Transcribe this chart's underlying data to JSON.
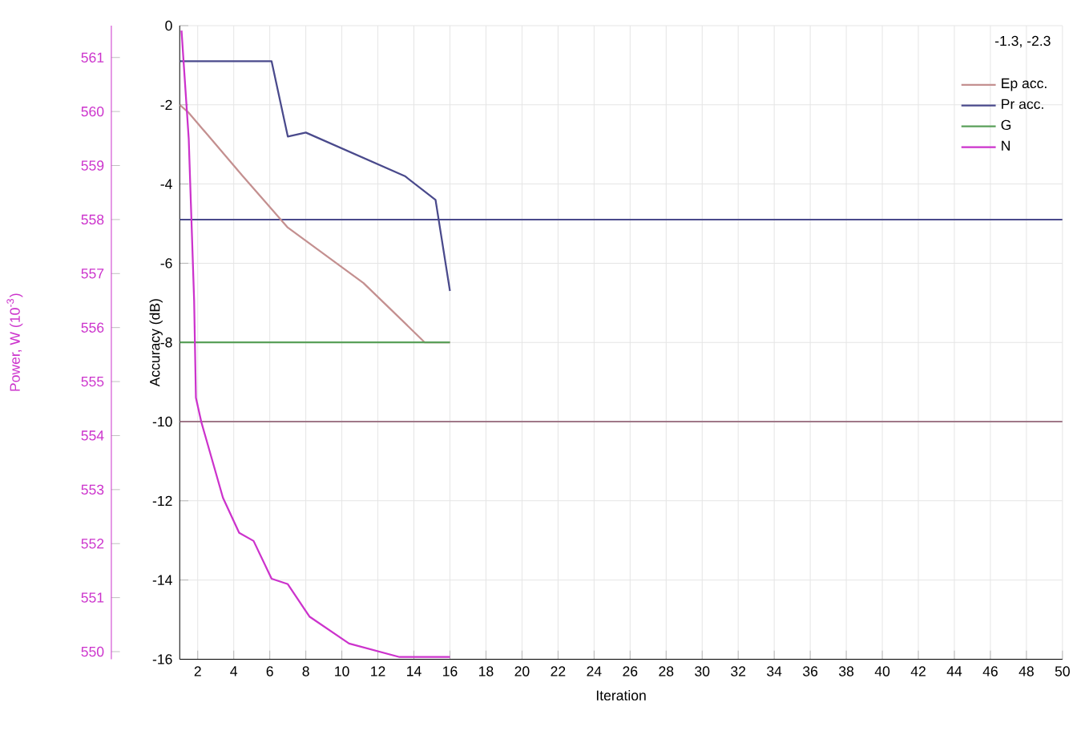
{
  "chart_data": {
    "type": "line",
    "xlabel": "Iteration",
    "ylabel": "Accuracy (dB)",
    "y2label": "Power, W (10$^{-3}$)",
    "xlim": [
      1,
      50
    ],
    "xticks": [
      2,
      4,
      6,
      8,
      10,
      12,
      14,
      16,
      18,
      20,
      22,
      24,
      26,
      28,
      30,
      32,
      34,
      36,
      38,
      40,
      42,
      44,
      46,
      48,
      50
    ],
    "ylim": [
      -16,
      0
    ],
    "yticks": [
      -16,
      -14,
      -12,
      -10,
      -8,
      -6,
      -4,
      -2,
      0
    ],
    "y2lim": [
      549.86,
      561.59
    ],
    "y2ticks": [
      550,
      551,
      552,
      553,
      554,
      555,
      556,
      557,
      558,
      559,
      560,
      561
    ],
    "grid": true,
    "legend": "top right",
    "marker": "none",
    "line_style": "solid",
    "annotations": [
      "-1.3, -2.3"
    ],
    "ref_lines": [
      {
        "axis": "y",
        "value": -4.9,
        "color": "#4a4a8c"
      },
      {
        "axis": "y",
        "value": -10,
        "color": "#a07888"
      }
    ],
    "series": [
      {
        "name": "Ep acc.",
        "color": "#c49090",
        "x": [
          1,
          1.5,
          4.5,
          7,
          11.2,
          13.7,
          14.6,
          16
        ],
        "values": [
          -2.0,
          -2.2,
          -3.8,
          -5.1,
          -6.5,
          -7.6,
          -8.0,
          -8.0
        ]
      },
      {
        "name": "Pr acc.",
        "color": "#4a4a8c",
        "x": [
          1,
          6.1,
          7,
          8,
          13.5,
          15.2,
          16
        ],
        "values": [
          -0.9,
          -0.9,
          -2.8,
          -2.7,
          -3.8,
          -4.4,
          -6.7
        ]
      },
      {
        "name": "G",
        "color": "#5aa05a",
        "x": [
          1,
          16
        ],
        "values": [
          -8,
          -8
        ]
      },
      {
        "name": "N",
        "color": "#cc33cc",
        "axis": "y2",
        "x": [
          1.1,
          1.5,
          1.8,
          1.9,
          2.2,
          3.4,
          4.3,
          5.1,
          6.1,
          7,
          8.2,
          10.4,
          13.2,
          16
        ],
        "values": [
          561.5,
          559.5,
          556.5,
          554.7,
          554.25,
          552.85,
          552.2,
          552.05,
          551.35,
          551.25,
          550.65,
          550.15,
          549.9,
          549.9
        ]
      }
    ]
  }
}
